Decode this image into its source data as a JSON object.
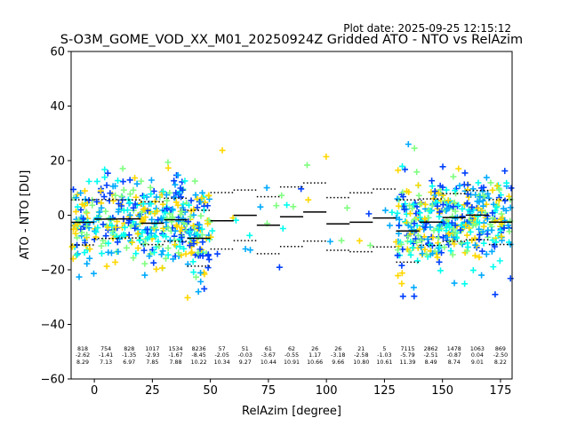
{
  "chart_data": {
    "type": "scatter",
    "plot_date": "Plot date: 2025-09-25 12:15:12",
    "title": "S-O3M_GOME_VOD_XX_M01_20250924Z Gridded ATO - NTO vs RelAzim",
    "xlabel": "RelAzim [degree]",
    "ylabel": "ATO - NTO [DU]",
    "xlim": [
      -10,
      180
    ],
    "ylim": [
      -60,
      60
    ],
    "xticks": [
      0,
      25,
      50,
      75,
      100,
      125,
      150,
      175
    ],
    "yticks": [
      -60,
      -40,
      -20,
      0,
      20,
      40,
      60
    ],
    "point_colors": [
      "#0040ff",
      "#00aaff",
      "#00ffee",
      "#80ff80",
      "#ffd700"
    ],
    "bins": [
      {
        "x": -5,
        "count": "818",
        "mean": "-2.62",
        "std": "8.29"
      },
      {
        "x": 5,
        "count": "754",
        "mean": "-1.41",
        "std": "7.13"
      },
      {
        "x": 15,
        "count": "828",
        "mean": "-1.35",
        "std": "6.97"
      },
      {
        "x": 25,
        "count": "1017",
        "mean": "-2.93",
        "std": "7.85"
      },
      {
        "x": 35,
        "count": "1534",
        "mean": "-1.67",
        "std": "7.88"
      },
      {
        "x": 45,
        "count": "8236",
        "mean": "-8.45",
        "std": "10.22"
      },
      {
        "x": 55,
        "count": "57",
        "mean": "-2.05",
        "std": "10.34"
      },
      {
        "x": 65,
        "count": "51",
        "mean": "-0.03",
        "std": "9.27"
      },
      {
        "x": 75,
        "count": "61",
        "mean": "-3.67",
        "std": "10.44"
      },
      {
        "x": 85,
        "count": "62",
        "mean": "-0.55",
        "std": "10.91"
      },
      {
        "x": 95,
        "count": "26",
        "mean": "1.17",
        "std": "10.66"
      },
      {
        "x": 105,
        "count": "26",
        "mean": "-3.18",
        "std": "9.66"
      },
      {
        "x": 115,
        "count": "21",
        "mean": "-2.58",
        "std": "10.80"
      },
      {
        "x": 125,
        "count": "5",
        "mean": "-1.03",
        "std": "10.61"
      },
      {
        "x": 135,
        "count": "7115",
        "mean": "-5.79",
        "std": "11.39"
      },
      {
        "x": 145,
        "count": "2862",
        "mean": "-2.51",
        "std": "8.49"
      },
      {
        "x": 155,
        "count": "1478",
        "mean": "-0.87",
        "std": "8.74"
      },
      {
        "x": 165,
        "count": "1063",
        "mean": "0.04",
        "std": "9.01"
      },
      {
        "x": 175,
        "count": "869",
        "mean": "-2.50",
        "std": "8.22"
      }
    ]
  }
}
